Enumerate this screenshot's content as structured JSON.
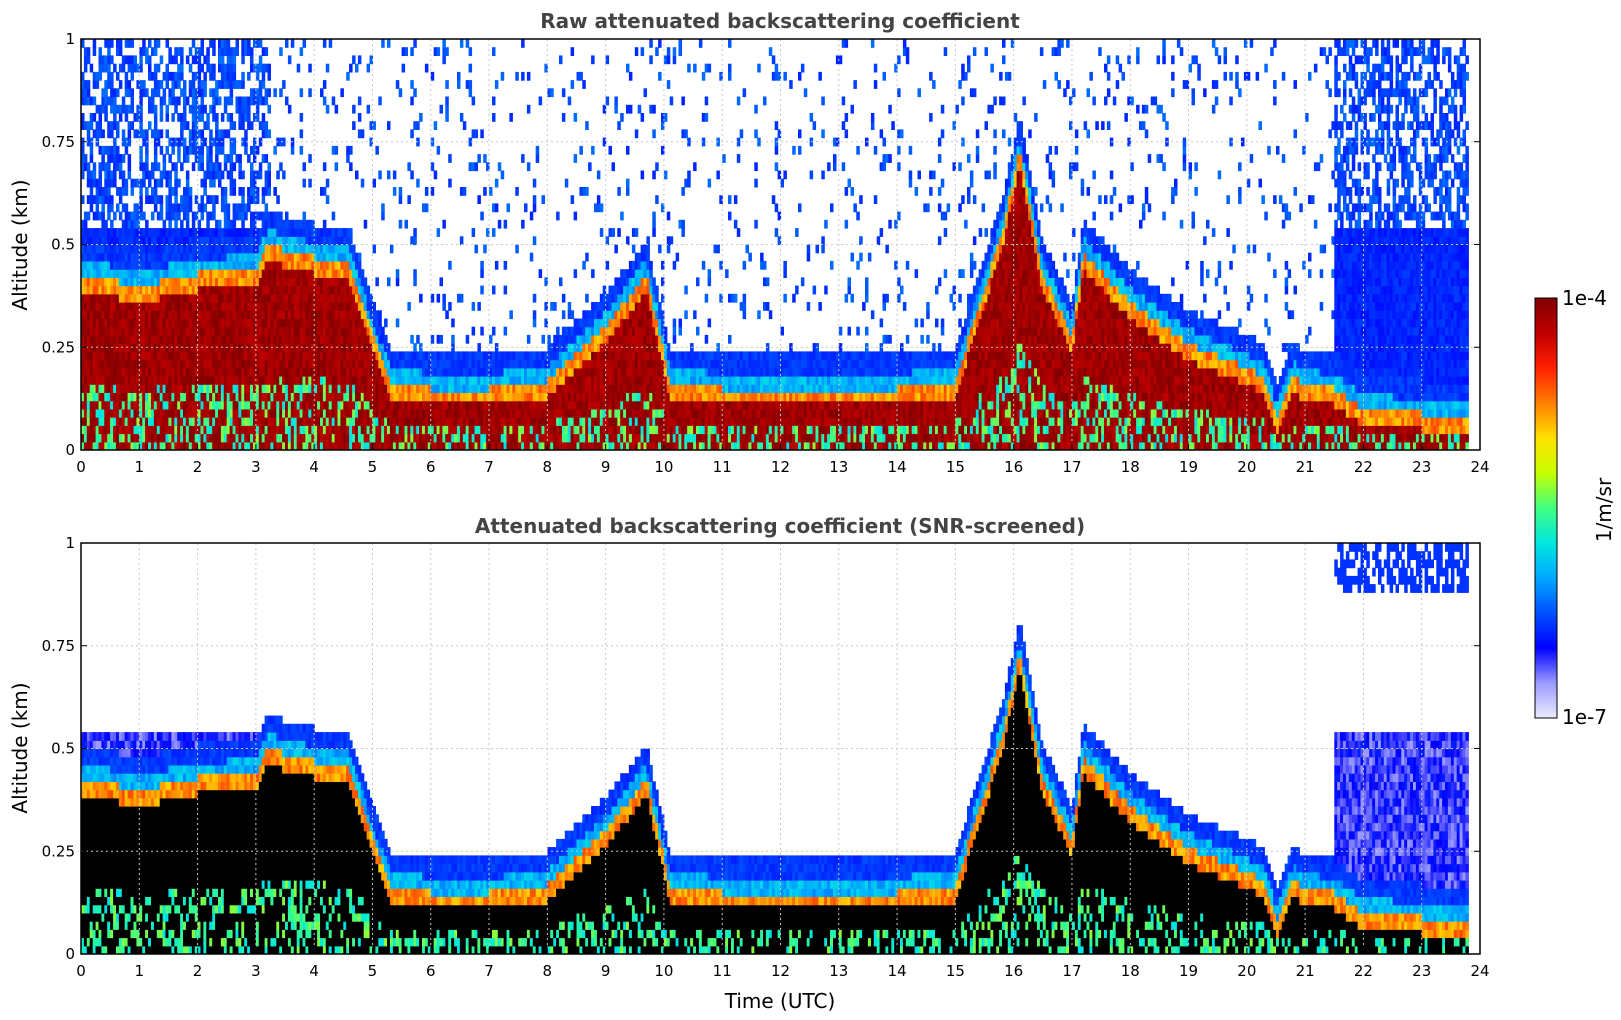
{
  "chart_data": [
    {
      "type": "heatmap",
      "title": "Raw attenuated backscattering coefficient",
      "xlabel": "",
      "ylabel": "Altitude (km)",
      "xlim": [
        0,
        24
      ],
      "ylim": [
        0,
        1
      ],
      "x_ticks": [
        "0",
        "1",
        "2",
        "3",
        "4",
        "5",
        "6",
        "7",
        "8",
        "9",
        "10",
        "11",
        "12",
        "13",
        "14",
        "15",
        "16",
        "17",
        "18",
        "19",
        "20",
        "21",
        "22",
        "23",
        "24"
      ],
      "y_ticks": [
        "0",
        "0.25",
        "0.5",
        "0.75",
        "1"
      ],
      "grid": true,
      "screened": false,
      "boundary_layer_top_km": {
        "time_utc": [
          0,
          1,
          2,
          3,
          3.2,
          4,
          4.6,
          5,
          5.3,
          6,
          7,
          8,
          9,
          9.7,
          10.1,
          11,
          12,
          13,
          14,
          15,
          15.8,
          16.1,
          16.5,
          17,
          17.2,
          18,
          19,
          20,
          20.3,
          20.5,
          20.8,
          21,
          21.5,
          22,
          23,
          23.8
        ],
        "values": [
          0.45,
          0.42,
          0.45,
          0.46,
          0.52,
          0.49,
          0.48,
          0.3,
          0.19,
          0.17,
          0.17,
          0.19,
          0.32,
          0.45,
          0.19,
          0.17,
          0.17,
          0.17,
          0.17,
          0.19,
          0.55,
          0.75,
          0.45,
          0.3,
          0.5,
          0.38,
          0.28,
          0.22,
          0.2,
          0.1,
          0.2,
          0.18,
          0.17,
          0.12,
          0.11,
          0.11
        ]
      }
    },
    {
      "type": "heatmap",
      "title": "Attenuated backscattering coefficient (SNR-screened)",
      "xlabel": "Time (UTC)",
      "ylabel": "Altitude (km)",
      "xlim": [
        0,
        24
      ],
      "ylim": [
        0,
        1
      ],
      "x_ticks": [
        "0",
        "1",
        "2",
        "3",
        "4",
        "5",
        "6",
        "7",
        "8",
        "9",
        "10",
        "11",
        "12",
        "13",
        "14",
        "15",
        "16",
        "17",
        "18",
        "19",
        "20",
        "21",
        "22",
        "23",
        "24"
      ],
      "y_ticks": [
        "0",
        "0.25",
        "0.5",
        "0.75",
        "1"
      ],
      "grid": true,
      "screened": true
    }
  ],
  "colorbar": {
    "label": "1/m/sr",
    "max_label": "1e-4",
    "min_label": "1e-7",
    "scale": "log",
    "colormap": [
      "#ececff",
      "#9a9aff",
      "#0000ff",
      "#0050ff",
      "#00a8ff",
      "#00e8e0",
      "#40ff80",
      "#c8ff00",
      "#ffe000",
      "#ff8000",
      "#ff2000",
      "#c00000",
      "#800000"
    ]
  },
  "colors": {
    "screened_saturation": "#000000",
    "grid": "#c8c8c8",
    "title": "#444444"
  }
}
